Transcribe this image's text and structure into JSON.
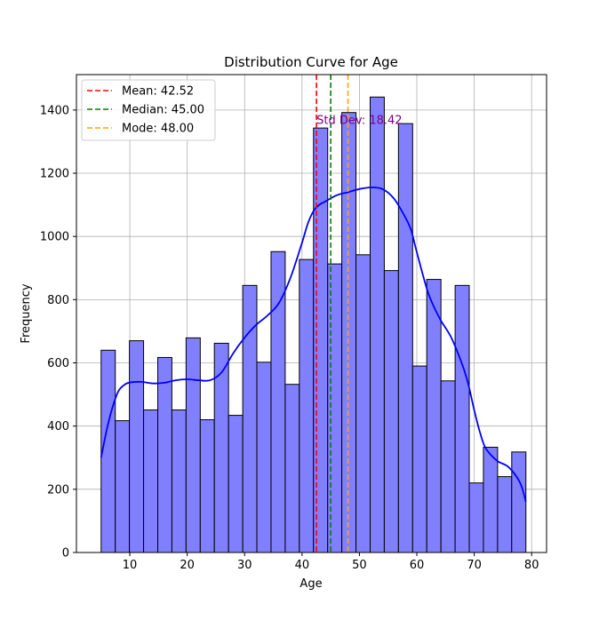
{
  "chart_data": {
    "type": "bar",
    "title": "Distribution Curve for Age",
    "xlabel": "Age",
    "ylabel": "Frequency",
    "xlim": [
      0.7,
      82.6
    ],
    "ylim": [
      0,
      1512
    ],
    "xticks": [
      10,
      20,
      30,
      40,
      50,
      60,
      70,
      80
    ],
    "yticks": [
      0,
      200,
      400,
      600,
      800,
      1000,
      1200,
      1400
    ],
    "grid": true,
    "bar_color": "#8080ff",
    "bar_edge_color": "#000000",
    "bins": [
      {
        "x0": 5.0,
        "x1": 7.47,
        "count": 640
      },
      {
        "x0": 7.47,
        "x1": 9.93,
        "count": 417
      },
      {
        "x0": 9.93,
        "x1": 12.4,
        "count": 670
      },
      {
        "x0": 12.4,
        "x1": 14.87,
        "count": 451
      },
      {
        "x0": 14.87,
        "x1": 17.33,
        "count": 617
      },
      {
        "x0": 17.33,
        "x1": 19.8,
        "count": 451
      },
      {
        "x0": 19.8,
        "x1": 22.27,
        "count": 679
      },
      {
        "x0": 22.27,
        "x1": 24.73,
        "count": 420
      },
      {
        "x0": 24.73,
        "x1": 27.2,
        "count": 662
      },
      {
        "x0": 27.2,
        "x1": 29.67,
        "count": 434
      },
      {
        "x0": 29.67,
        "x1": 32.13,
        "count": 845
      },
      {
        "x0": 32.13,
        "x1": 34.6,
        "count": 602
      },
      {
        "x0": 34.6,
        "x1": 37.07,
        "count": 952
      },
      {
        "x0": 37.07,
        "x1": 39.53,
        "count": 532
      },
      {
        "x0": 39.53,
        "x1": 42.0,
        "count": 927
      },
      {
        "x0": 42.0,
        "x1": 44.47,
        "count": 1343
      },
      {
        "x0": 44.47,
        "x1": 46.93,
        "count": 913
      },
      {
        "x0": 46.93,
        "x1": 49.4,
        "count": 1392
      },
      {
        "x0": 49.4,
        "x1": 51.87,
        "count": 942
      },
      {
        "x0": 51.87,
        "x1": 54.33,
        "count": 1441
      },
      {
        "x0": 54.33,
        "x1": 56.8,
        "count": 892
      },
      {
        "x0": 56.8,
        "x1": 59.27,
        "count": 1357
      },
      {
        "x0": 59.27,
        "x1": 61.73,
        "count": 590
      },
      {
        "x0": 61.73,
        "x1": 64.2,
        "count": 864
      },
      {
        "x0": 64.2,
        "x1": 66.67,
        "count": 543
      },
      {
        "x0": 66.67,
        "x1": 69.13,
        "count": 845
      },
      {
        "x0": 69.13,
        "x1": 71.6,
        "count": 220
      },
      {
        "x0": 71.6,
        "x1": 74.07,
        "count": 333
      },
      {
        "x0": 74.07,
        "x1": 76.53,
        "count": 240
      },
      {
        "x0": 76.53,
        "x1": 79.0,
        "count": 318
      }
    ],
    "kde": {
      "color": "#0000ff",
      "x": [
        5,
        6,
        7,
        8,
        9,
        10,
        12,
        14,
        16,
        18,
        20,
        22,
        24,
        26,
        28,
        30,
        32,
        34,
        36,
        38,
        40,
        41,
        42,
        43,
        44,
        46,
        48,
        50,
        52,
        54,
        56,
        58,
        59,
        60,
        62,
        64,
        66,
        68,
        69,
        70,
        71,
        72,
        74,
        76,
        78,
        79
      ],
      "y": [
        300,
        390,
        460,
        510,
        530,
        538,
        540,
        535,
        537,
        545,
        548,
        545,
        545,
        570,
        630,
        680,
        720,
        750,
        790,
        870,
        980,
        1040,
        1080,
        1100,
        1110,
        1130,
        1140,
        1150,
        1155,
        1150,
        1120,
        1060,
        1020,
        950,
        820,
        740,
        680,
        590,
        530,
        450,
        380,
        330,
        290,
        270,
        220,
        160
      ]
    },
    "reference_lines": [
      {
        "name": "Mean: 42.52",
        "x": 42.52,
        "color": "#ff0000"
      },
      {
        "name": "Median: 45.00",
        "x": 45.0,
        "color": "#008000"
      },
      {
        "name": "Mode: 48.00",
        "x": 48.0,
        "color": "#ffa500"
      }
    ],
    "annotation": {
      "text": "Std Dev: 18.42",
      "x": 42.52,
      "y": 1370,
      "color": "#800080"
    },
    "legend_position": "top-left"
  }
}
